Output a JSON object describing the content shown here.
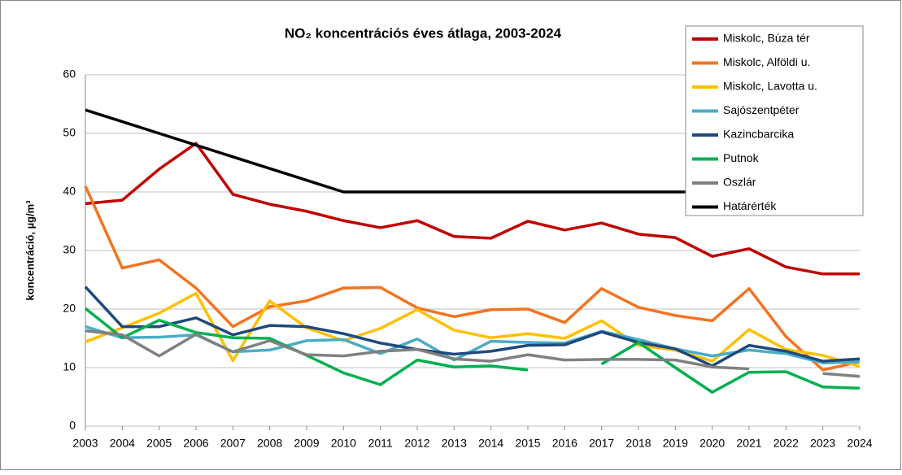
{
  "chart_data": {
    "type": "line",
    "title": "NO₂ koncentrációs éves átlaga, 2003-2024",
    "y_label": "koncentráció, µg/m³",
    "categories": [
      "2003",
      "2004",
      "2005",
      "2006",
      "2007",
      "2008",
      "2009",
      "2010",
      "2011",
      "2012",
      "2013",
      "2014",
      "2015",
      "2016",
      "2017",
      "2018",
      "2019",
      "2020",
      "2021",
      "2022",
      "2023",
      "2024"
    ],
    "ylim": [
      0,
      60
    ],
    "yticks": [
      0,
      10,
      20,
      30,
      40,
      50,
      60
    ],
    "grid": true,
    "legend": "top-right",
    "series": [
      {
        "name": "Miskolc, Búza tér",
        "color": "#c00000",
        "values": [
          38,
          38.6,
          43.9,
          48.3,
          39.6,
          37.9,
          36.7,
          35.1,
          33.9,
          35.1,
          32.4,
          32.1,
          35,
          33.5,
          34.7,
          32.8,
          32.2,
          29,
          30.3,
          27.2,
          26,
          26
        ]
      },
      {
        "name": "Miskolc, Alföldi u.",
        "color": "#f4731f",
        "values": [
          41,
          27,
          28.4,
          23.6,
          17,
          20.4,
          21.4,
          23.6,
          23.7,
          20.2,
          18.7,
          19.9,
          20,
          17.7,
          23.5,
          20.3,
          18.9,
          18,
          23.5,
          15.3,
          9.6,
          11
        ]
      },
      {
        "name": "Miskolc, Lavotta u.",
        "color": "#ffc000",
        "values": [
          14.4,
          16.8,
          19.3,
          22.7,
          11.2,
          21.4,
          16.8,
          14.6,
          16.7,
          19.9,
          16.4,
          15.1,
          15.8,
          15,
          18,
          13.8,
          13,
          11.1,
          16.5,
          13.1,
          12.1,
          10.2
        ]
      },
      {
        "name": "Sajószentpéter",
        "color": "#4bacc6",
        "values": [
          17,
          15.1,
          15.2,
          15.6,
          12.7,
          13,
          14.6,
          14.8,
          12.4,
          14.9,
          11.3,
          14.5,
          14.3,
          14.2,
          16.2,
          14.8,
          13.2,
          12,
          13,
          12.4,
          10.8,
          11
        ]
      },
      {
        "name": "Kazincbarcika",
        "color": "#1f497d",
        "values": [
          23.8,
          17,
          17,
          18.5,
          15.6,
          17.2,
          17,
          15.8,
          14.2,
          13.1,
          12.3,
          12.8,
          13.8,
          13.9,
          16.1,
          14.3,
          13.2,
          10.3,
          13.8,
          12.8,
          11.1,
          11.5
        ]
      },
      {
        "name": "Putnok",
        "color": "#00b050",
        "values": [
          20.1,
          15.1,
          18.1,
          16,
          15.1,
          15,
          12.1,
          9.1,
          7.1,
          11.3,
          10.1,
          10.3,
          9.6,
          null,
          10.6,
          14.3,
          10,
          5.8,
          9.2,
          9.3,
          6.7,
          6.5
        ]
      },
      {
        "name": "Oszlár",
        "color": "#808080",
        "values": [
          16.3,
          15.6,
          12,
          15.7,
          12.7,
          14.6,
          12.2,
          12,
          12.8,
          13.1,
          11.5,
          11.1,
          12.2,
          11.3,
          11.4,
          11.4,
          11.3,
          10.1,
          9.8,
          null,
          9,
          8.5
        ]
      },
      {
        "name": "Határérték",
        "color": "#000000",
        "values": [
          54,
          52,
          50,
          48,
          46,
          44,
          42,
          40,
          40,
          40,
          40,
          40,
          40,
          40,
          40,
          40,
          40,
          40,
          40,
          40,
          40,
          40
        ]
      }
    ]
  }
}
